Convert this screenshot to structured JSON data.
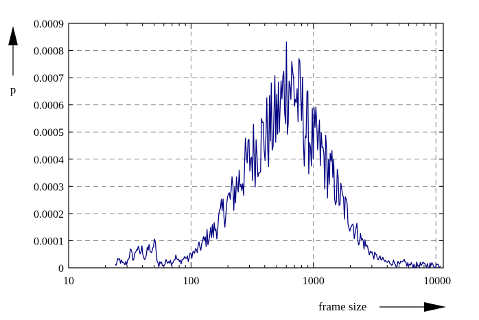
{
  "chart_data": {
    "type": "line",
    "xlabel": "frame size",
    "ylabel": "p",
    "xscale": "log",
    "xlim": [
      10,
      11500
    ],
    "ylim": [
      0,
      0.0009
    ],
    "grid": true,
    "line_color": "#000080",
    "x_ticks": [
      {
        "value": 10,
        "label": "10"
      },
      {
        "value": 100,
        "label": "100"
      },
      {
        "value": 1000,
        "label": "1000"
      },
      {
        "value": 10000,
        "label": "10000"
      }
    ],
    "y_ticks": [
      {
        "value": 0,
        "label": "0"
      },
      {
        "value": 0.0001,
        "label": "0.0001"
      },
      {
        "value": 0.0002,
        "label": "0.0002"
      },
      {
        "value": 0.0003,
        "label": "0.0003"
      },
      {
        "value": 0.0004,
        "label": "0.0004"
      },
      {
        "value": 0.0005,
        "label": "0.0005"
      },
      {
        "value": 0.0006,
        "label": "0.0006"
      },
      {
        "value": 0.0007,
        "label": "0.0007"
      },
      {
        "value": 0.0008,
        "label": "0.0008"
      },
      {
        "value": 0.0009,
        "label": "0.0009"
      }
    ],
    "series": [
      {
        "x": [
          24,
          26,
          28,
          30,
          32,
          34,
          36,
          38,
          40,
          42,
          44,
          46,
          48,
          50,
          52,
          54,
          56,
          60,
          65,
          70,
          75,
          80,
          85,
          90,
          95,
          100,
          110,
          120,
          130,
          140,
          150,
          165,
          180,
          200,
          220,
          240,
          260,
          280,
          300,
          330,
          360,
          400,
          440,
          480,
          520,
          560,
          600,
          650,
          700,
          750,
          800,
          850,
          900,
          950,
          1000,
          1100,
          1200,
          1300,
          1400,
          1500,
          1650,
          1800,
          2000,
          2200,
          2400,
          2600,
          2800,
          3000,
          3300,
          3600,
          4000,
          4500,
          5000,
          5500,
          6000,
          7000,
          8000,
          9000,
          10000,
          11000
        ],
        "y": [
          1e-05,
          3e-05,
          1e-05,
          2e-05,
          6e-05,
          3e-05,
          8e-05,
          5e-05,
          7e-05,
          3e-05,
          6e-05,
          8e-05,
          4e-05,
          0.00011,
          5e-05,
          1e-05,
          2e-05,
          1e-05,
          3e-05,
          2e-05,
          4e-05,
          2e-05,
          3e-05,
          4e-05,
          3e-05,
          5e-05,
          6e-05,
          8e-05,
          0.0001,
          0.00012,
          0.00013,
          0.00016,
          0.0002,
          0.00024,
          0.00027,
          0.00031,
          0.00034,
          0.00037,
          0.0004,
          0.00043,
          0.00046,
          0.00048,
          0.00051,
          0.00054,
          0.00057,
          0.00062,
          0.00071,
          0.00068,
          0.00066,
          0.00061,
          0.00058,
          0.00052,
          0.0005,
          0.00048,
          0.00046,
          0.00044,
          0.00041,
          0.00037,
          0.00034,
          0.00031,
          0.00026,
          0.00022,
          0.00018,
          0.00014,
          0.00011,
          9e-05,
          7e-05,
          5e-05,
          4e-05,
          3e-05,
          2e-05,
          2e-05,
          1e-05,
          2e-05,
          1e-05,
          1e-05,
          1e-05,
          1e-05,
          1e-05,
          1e-05
        ]
      }
    ]
  }
}
